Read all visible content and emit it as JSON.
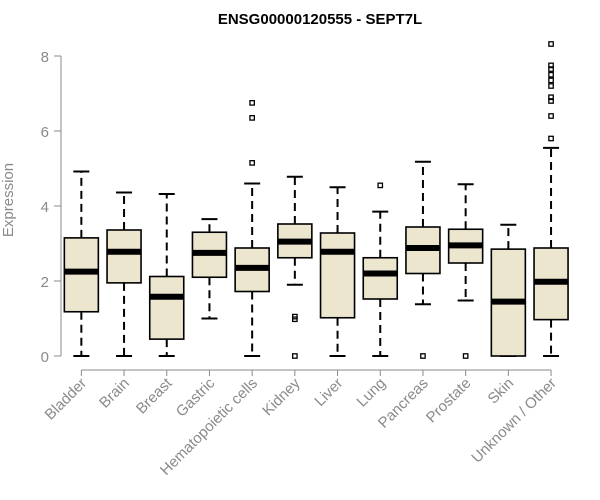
{
  "chart_data": {
    "type": "boxplot",
    "title": "ENSG00000120555 - SEPT7L",
    "xlabel": "",
    "ylabel": "Expression",
    "ylim": [
      0,
      8.4
    ],
    "yticks": [
      0,
      2,
      4,
      6,
      8
    ],
    "grid": false,
    "colors": {
      "box_fill": "#ece6cf",
      "box_stroke": "#000000",
      "median": "#000000",
      "axis": "#8a8a8a"
    },
    "categories": [
      "Bladder",
      "Brain",
      "Breast",
      "Gastric",
      "Hematopoietic cells",
      "Kidney",
      "Liver",
      "Lung",
      "Pancreas",
      "Prostate",
      "Skin",
      "Unknown / Other"
    ],
    "boxes": [
      {
        "category": "Bladder",
        "whisker_low": 0.0,
        "q1": 1.18,
        "median": 2.25,
        "q3": 3.15,
        "whisker_high": 4.92,
        "outliers": []
      },
      {
        "category": "Brain",
        "whisker_low": 0.0,
        "q1": 1.95,
        "median": 2.78,
        "q3": 3.36,
        "whisker_high": 4.36,
        "outliers": []
      },
      {
        "category": "Breast",
        "whisker_low": 0.0,
        "q1": 0.45,
        "median": 1.58,
        "q3": 2.12,
        "whisker_high": 4.32,
        "outliers": []
      },
      {
        "category": "Gastric",
        "whisker_low": 1.0,
        "q1": 2.1,
        "median": 2.75,
        "q3": 3.3,
        "whisker_high": 3.65,
        "outliers": []
      },
      {
        "category": "Hematopoietic cells",
        "whisker_low": 0.0,
        "q1": 1.72,
        "median": 2.35,
        "q3": 2.88,
        "whisker_high": 4.6,
        "outliers": [
          5.15,
          6.35,
          6.75
        ]
      },
      {
        "category": "Kidney",
        "whisker_low": 1.9,
        "q1": 2.62,
        "median": 3.05,
        "q3": 3.52,
        "whisker_high": 4.78,
        "outliers": [
          1.05,
          0.98,
          0.0
        ]
      },
      {
        "category": "Liver",
        "whisker_low": 0.0,
        "q1": 1.02,
        "median": 2.78,
        "q3": 3.28,
        "whisker_high": 4.5,
        "outliers": []
      },
      {
        "category": "Lung",
        "whisker_low": 0.0,
        "q1": 1.52,
        "median": 2.2,
        "q3": 2.62,
        "whisker_high": 3.85,
        "outliers": [
          4.55
        ]
      },
      {
        "category": "Pancreas",
        "whisker_low": 1.38,
        "q1": 2.2,
        "median": 2.88,
        "q3": 3.44,
        "whisker_high": 5.18,
        "outliers": [
          0.0
        ]
      },
      {
        "category": "Prostate",
        "whisker_low": 1.48,
        "q1": 2.48,
        "median": 2.95,
        "q3": 3.38,
        "whisker_high": 4.58,
        "outliers": [
          0.0
        ]
      },
      {
        "category": "Skin",
        "whisker_low": 0.0,
        "q1": 0.0,
        "median": 1.45,
        "q3": 2.85,
        "whisker_high": 3.5,
        "outliers": []
      },
      {
        "category": "Unknown / Other",
        "whisker_low": 0.0,
        "q1": 0.97,
        "median": 1.98,
        "q3": 2.88,
        "whisker_high": 5.55,
        "outliers": [
          5.8,
          6.4,
          6.8,
          6.9,
          7.2,
          7.35,
          7.5,
          7.65,
          7.75,
          8.32
        ]
      }
    ]
  }
}
